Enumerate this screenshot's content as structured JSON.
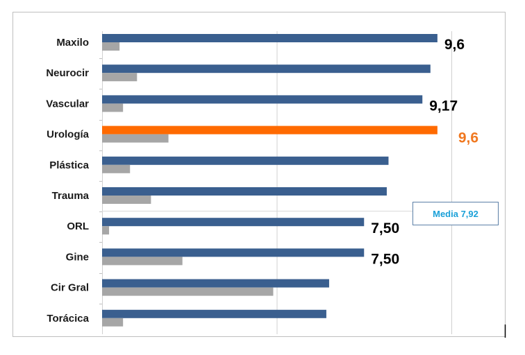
{
  "chart_data": {
    "type": "bar",
    "orientation": "horizontal",
    "categories": [
      "Maxilo",
      "Neurocir",
      "Vascular",
      "Urología",
      "Plástica",
      "Trauma",
      "ORL",
      "Gine",
      "Cir Gral",
      "Torácica"
    ],
    "series": [
      {
        "values": [
          9.6,
          9.4,
          9.17,
          9.6,
          8.2,
          8.15,
          7.5,
          7.5,
          6.5,
          6.42
        ],
        "color": "#3a5f8f",
        "highlight": {
          "category": "Urología",
          "color": "#ff6a00"
        }
      },
      {
        "values": [
          0.5,
          1.0,
          0.6,
          1.9,
          0.8,
          1.4,
          0.2,
          2.3,
          4.9,
          0.6
        ],
        "color": "#a6a6a6"
      }
    ],
    "data_labels": [
      {
        "category": "Maxilo",
        "text": "9,6",
        "color": "#000000"
      },
      {
        "category": "Vascular",
        "text": "9,17",
        "color": "#000000"
      },
      {
        "category": "Urología",
        "text": "9,6",
        "color": "#f07820"
      },
      {
        "category": "ORL",
        "text": "7,50",
        "color": "#000000"
      },
      {
        "category": "Gine",
        "text": "7,50",
        "color": "#000000"
      }
    ],
    "annotation": {
      "text": "Media 7,92",
      "color": "#1aa0d8"
    },
    "xlim": [
      0,
      10
    ],
    "grid": true,
    "legend": "none",
    "title": "",
    "xlabel": "",
    "ylabel": ""
  }
}
